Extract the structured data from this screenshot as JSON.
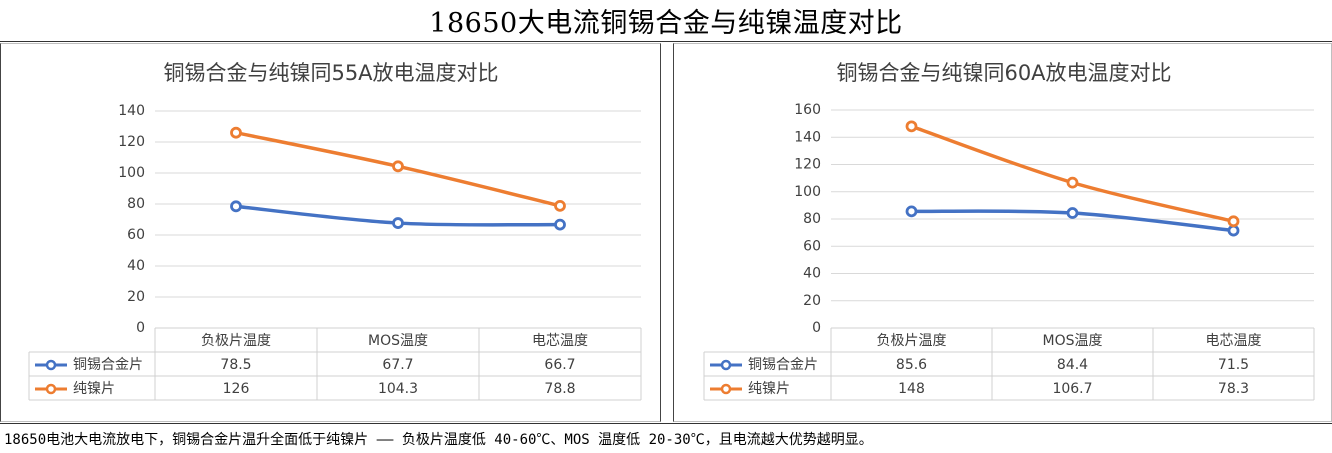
{
  "page_title": "18650大电流铜锡合金与纯镍温度对比",
  "footnote": "18650电池大电流放电下，铜锡合金片温升全面低于纯镍片 —— 负极片温度低 40-60℃、MOS 温度低 20-30℃，且电流越大优势越明显。",
  "colors": {
    "series_1": "#4472c4",
    "series_2": "#ed7d31",
    "grid": "#d9d9d9",
    "text": "#404040"
  },
  "chart_data": [
    {
      "type": "line",
      "title": "铜锡合金与纯镍同55A放电温度对比",
      "categories": [
        "负极片温度",
        "MOS温度",
        "电芯温度"
      ],
      "ylim": [
        0,
        140
      ],
      "yticks": [
        0,
        20,
        40,
        60,
        80,
        100,
        120,
        140
      ],
      "grid": true,
      "legend": "data-table",
      "series": [
        {
          "name": "铜锡合金片",
          "values": [
            78.5,
            67.7,
            66.7
          ],
          "labels": [
            "78.5",
            "67.7",
            "66.7"
          ],
          "color": "#4472c4"
        },
        {
          "name": "纯镍片",
          "values": [
            126,
            104.3,
            78.8
          ],
          "labels": [
            "126",
            "104.3",
            "78.8"
          ],
          "color": "#ed7d31"
        }
      ]
    },
    {
      "type": "line",
      "title": "铜锡合金与纯镍同60A放电温度对比",
      "categories": [
        "负极片温度",
        "MOS温度",
        "电芯温度"
      ],
      "ylim": [
        0,
        160
      ],
      "yticks": [
        0,
        20,
        40,
        60,
        80,
        100,
        120,
        140,
        160
      ],
      "grid": true,
      "legend": "data-table",
      "series": [
        {
          "name": "铜锡合金片",
          "values": [
            85.6,
            84.4,
            71.5
          ],
          "labels": [
            "85.6",
            "84.4",
            "71.5"
          ],
          "color": "#4472c4"
        },
        {
          "name": "纯镍片",
          "values": [
            148,
            106.7,
            78.3
          ],
          "labels": [
            "148",
            "106.7",
            "78.3"
          ],
          "color": "#ed7d31"
        }
      ]
    }
  ]
}
